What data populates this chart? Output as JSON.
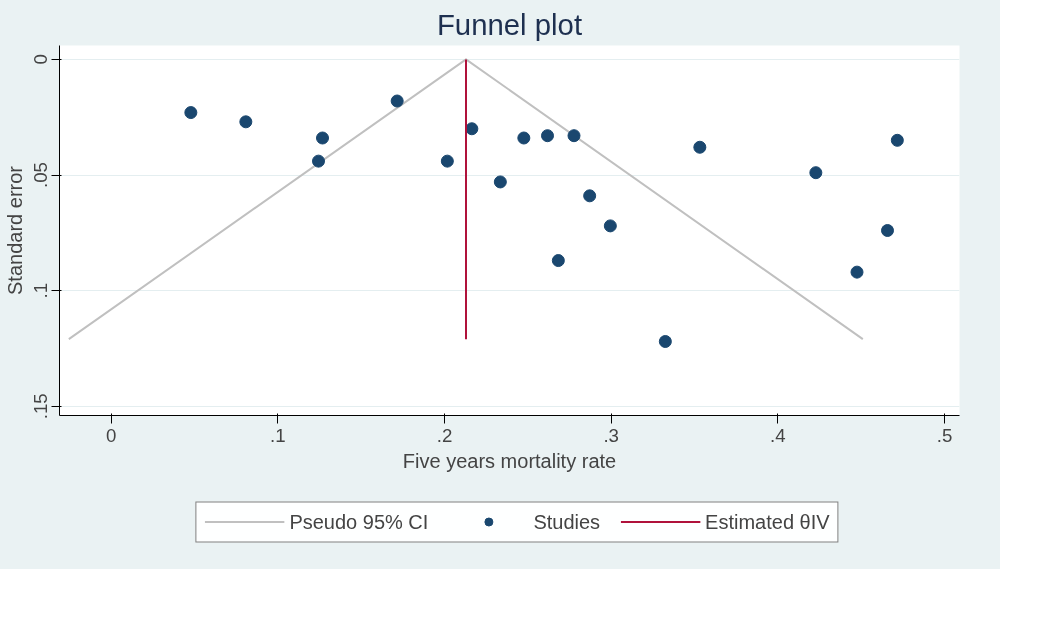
{
  "chart_data": {
    "type": "scatter",
    "title": "Funnel plot",
    "xlabel": "Five years mortality rate",
    "ylabel": "Standard error",
    "xlim": [
      -0.031,
      0.509
    ],
    "ylim": [
      0.154,
      -0.006
    ],
    "xticks": [
      {
        "value": 0,
        "label": "0"
      },
      {
        "value": 0.1,
        "label": ".1"
      },
      {
        "value": 0.2,
        "label": ".2"
      },
      {
        "value": 0.3,
        "label": ".3"
      },
      {
        "value": 0.4,
        "label": ".4"
      },
      {
        "value": 0.5,
        "label": ".5"
      }
    ],
    "yticks": [
      {
        "value": 0,
        "label": "0"
      },
      {
        "value": 0.05,
        "label": ".05"
      },
      {
        "value": 0.1,
        "label": ".1"
      },
      {
        "value": 0.15,
        "label": ".15"
      }
    ],
    "grid": "y",
    "legend": "bottom",
    "marker": "circle",
    "series": [
      {
        "name": "Pseudo 95% CI",
        "type": "line",
        "marker": "none",
        "color": "#c0c0c0",
        "x": [
          -0.0254,
          0.2129,
          0.451
        ],
        "values": [
          0.121,
          0,
          0.121
        ]
      },
      {
        "name": "Studies",
        "color": "#1a476f",
        "x": [
          0.0478,
          0.0808,
          0.1268,
          0.1244,
          0.1716,
          0.2017,
          0.2164,
          0.2335,
          0.2476,
          0.2618,
          0.2777,
          0.2683,
          0.2871,
          0.2995,
          0.3325,
          0.3532,
          0.4228,
          0.4475,
          0.4658,
          0.4717
        ],
        "values": [
          0.023,
          0.027,
          0.034,
          0.044,
          0.018,
          0.044,
          0.03,
          0.053,
          0.034,
          0.033,
          0.033,
          0.087,
          0.059,
          0.072,
          0.122,
          0.038,
          0.049,
          0.092,
          0.074,
          0.035
        ]
      },
      {
        "name": "Estimated θIV",
        "type": "line",
        "marker": "none",
        "color": "#b0123b",
        "x": [
          0.2129,
          0.2129
        ],
        "values": [
          0,
          0.121
        ]
      }
    ]
  }
}
